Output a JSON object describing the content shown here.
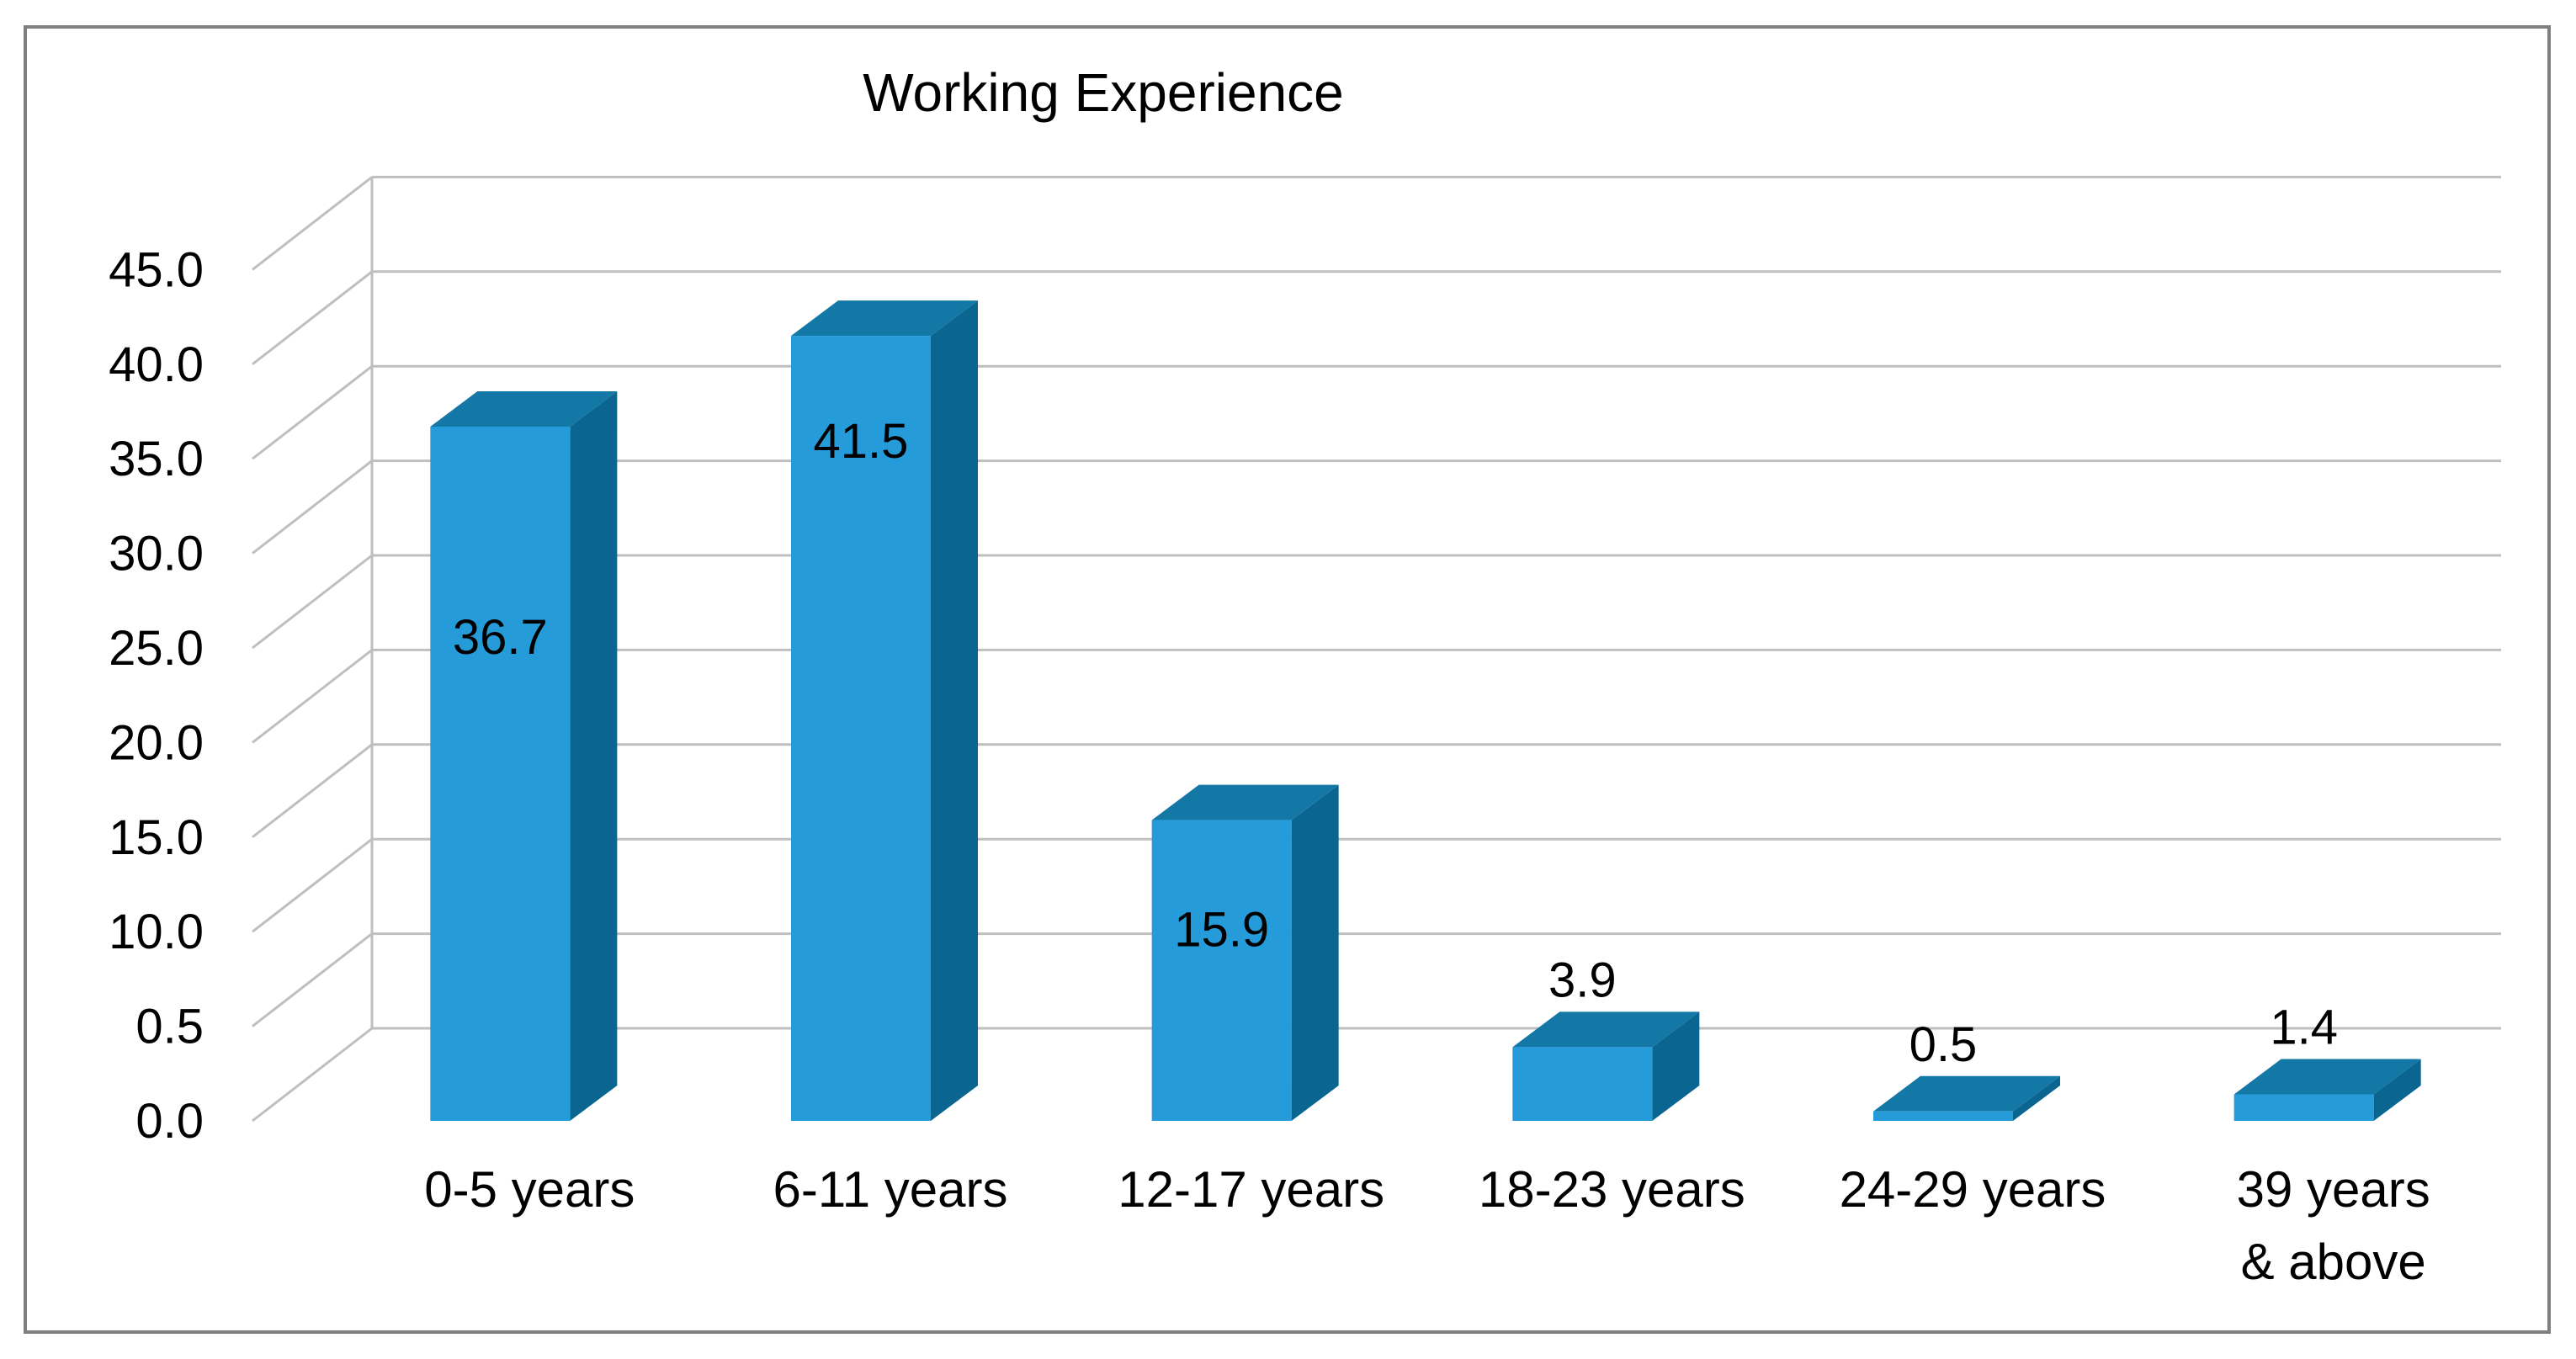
{
  "chart_data": {
    "type": "bar",
    "title": "Working Experience",
    "xlabel": "",
    "ylabel": "",
    "categories": [
      "0-5 years",
      "6-11 years",
      "12-17 years",
      "18-23 years",
      "24-29 years",
      "39 years & above"
    ],
    "category_lines": [
      [
        "0-5 years"
      ],
      [
        "6-11 years"
      ],
      [
        "12-17 years"
      ],
      [
        "18-23 years"
      ],
      [
        "24-29 years"
      ],
      [
        "39 years",
        "& above"
      ]
    ],
    "values": [
      36.7,
      41.5,
      15.9,
      3.9,
      0.5,
      1.4
    ],
    "value_labels": [
      "36.7",
      "41.5",
      "15.9",
      "3.9",
      "0.5",
      "1.4"
    ],
    "y_tick_labels": [
      "0.0",
      "0.5",
      "10.0",
      "15.0",
      "20.0",
      "25.0",
      "30.0",
      "35.0",
      "40.0",
      "45.0"
    ],
    "ylim": [
      0,
      45
    ],
    "grid": true,
    "legend": "none",
    "style": "3d-column",
    "colors": {
      "front": "#259bd9",
      "top": "#1478a6",
      "side": "#0a6590",
      "grid": "#bfbfbf",
      "frame": "#7f7f7f"
    }
  }
}
